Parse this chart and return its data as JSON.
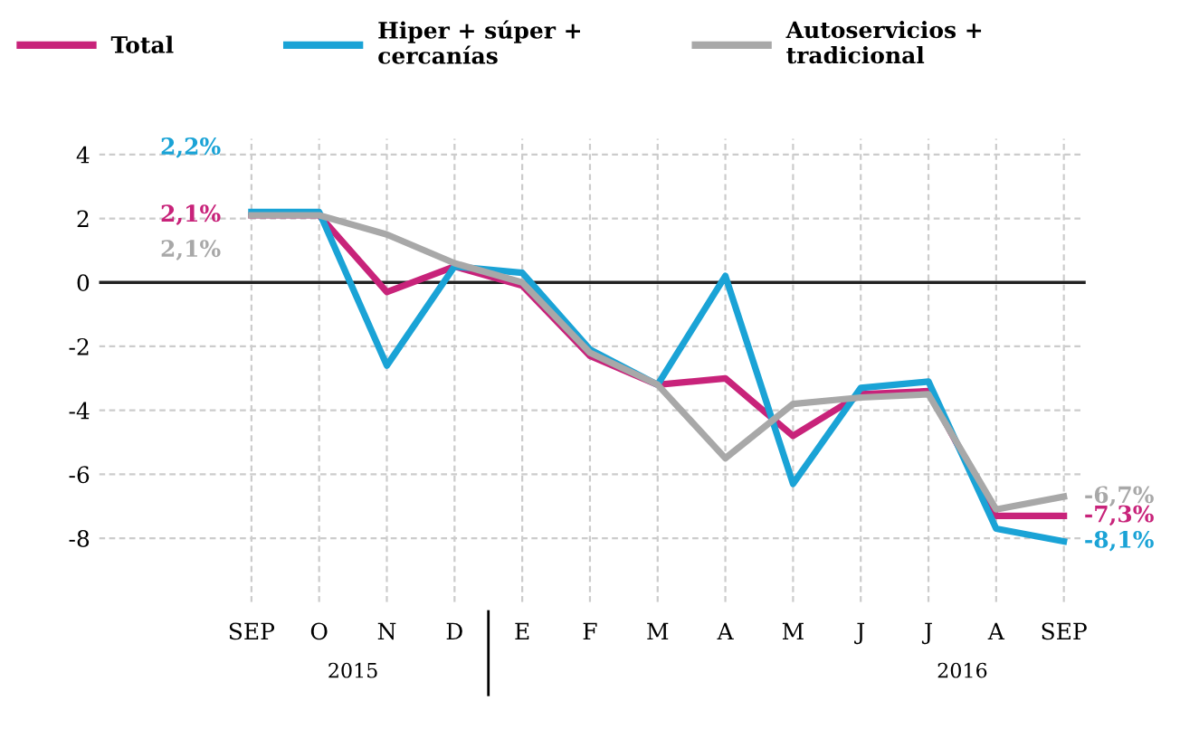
{
  "chart_data": {
    "type": "line",
    "categories": [
      "SEP",
      "O",
      "N",
      "D",
      "E",
      "F",
      "M",
      "A",
      "M",
      "J",
      "J",
      "A",
      "SEP"
    ],
    "series": [
      {
        "name": "Total",
        "color": "#c8237a",
        "values": [
          2.1,
          2.1,
          -0.3,
          0.5,
          -0.1,
          -2.3,
          -3.2,
          -3.0,
          -4.8,
          -3.5,
          -3.4,
          -7.3,
          -7.3
        ],
        "value_labels": [
          "2,1%",
          null,
          null,
          null,
          null,
          null,
          null,
          null,
          null,
          null,
          null,
          null,
          "-7,3%"
        ]
      },
      {
        "name": "Hiper + súper +\ncercanías",
        "color": "#1aa3d6",
        "values": [
          2.2,
          2.2,
          -2.6,
          0.5,
          0.3,
          -2.1,
          -3.2,
          0.2,
          -6.3,
          -3.3,
          -3.1,
          -7.7,
          -8.1
        ],
        "value_labels": [
          "2,2%",
          null,
          null,
          null,
          null,
          null,
          null,
          null,
          null,
          null,
          null,
          null,
          "-8,1%"
        ]
      },
      {
        "name": "Autoservicios +\ntradicional",
        "color": "#a8a8a8",
        "values": [
          2.1,
          2.1,
          1.5,
          0.6,
          0.0,
          -2.2,
          -3.2,
          -5.5,
          -3.8,
          -3.6,
          -3.5,
          -7.1,
          -6.7
        ],
        "value_labels": [
          "2,1%",
          null,
          null,
          null,
          null,
          null,
          null,
          null,
          null,
          null,
          null,
          null,
          "-6,7%"
        ]
      }
    ],
    "ylim": [
      -10,
      4.5
    ],
    "yticks": [
      4,
      2,
      0,
      -2,
      -4,
      -6,
      -8
    ],
    "ref_lines": [
      {
        "axis": "y",
        "value": 0,
        "color": "#222222"
      }
    ],
    "annotations": [
      "2015",
      "2016"
    ],
    "grid": true,
    "legend": "top",
    "line_style": "solid"
  }
}
